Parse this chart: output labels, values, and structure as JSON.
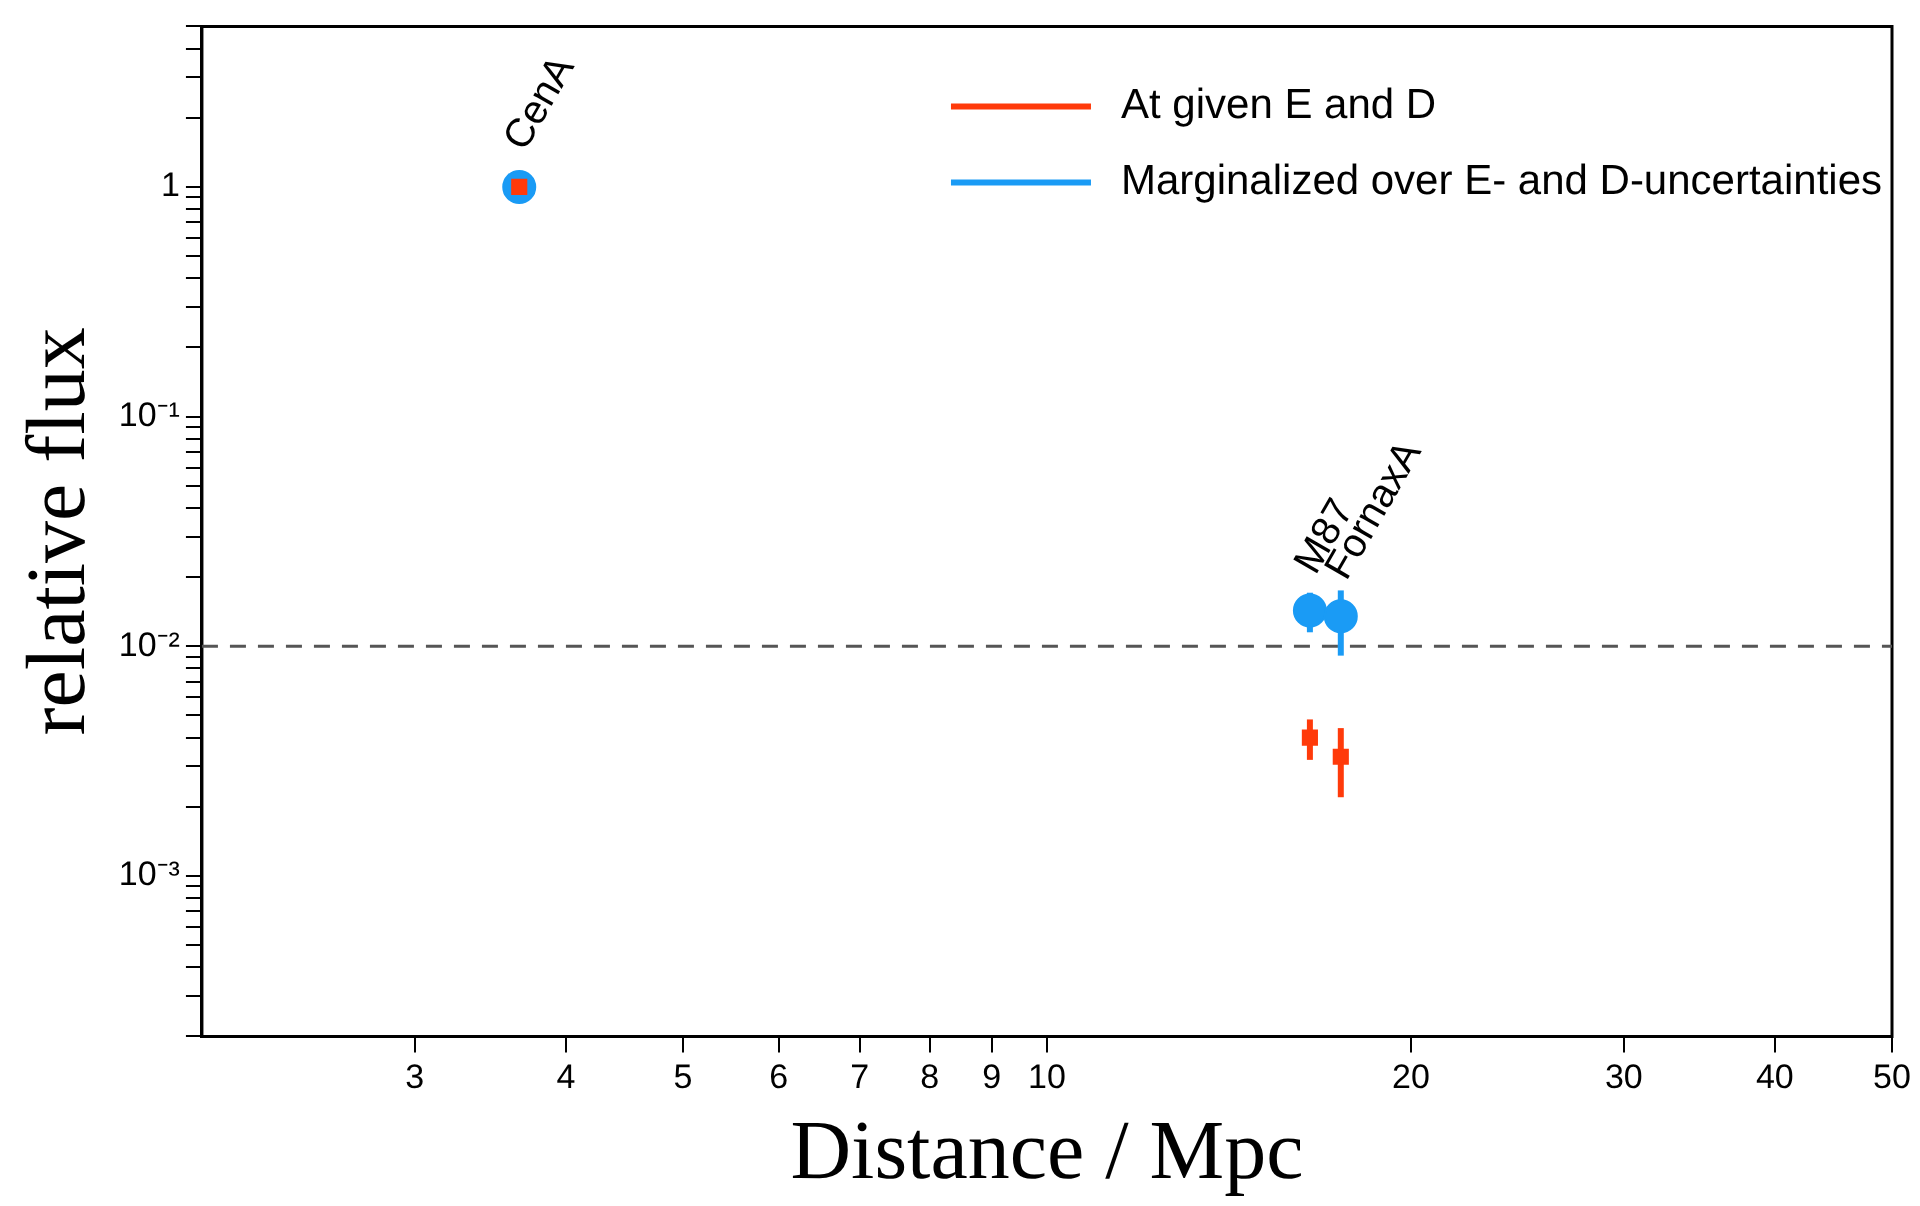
{
  "chart_data": {
    "type": "scatter",
    "xlabel": "Distance / Mpc",
    "ylabel": "relative flux",
    "log": "xy",
    "grid": false,
    "legend": "top right",
    "xlim": [
      2,
      50
    ],
    "xticks": [
      3,
      4,
      5,
      6,
      7,
      8,
      9,
      10,
      20,
      30,
      40,
      50
    ],
    "ylim": [
      0.0002,
      5
    ],
    "yticks": [
      {
        "value": 0.0002,
        "label": null
      },
      {
        "value": 0.0003,
        "label": null
      },
      {
        "value": 0.0004,
        "label": null
      },
      {
        "value": 0.0005,
        "label": null
      },
      {
        "value": 0.0006,
        "label": null
      },
      {
        "value": 0.0007,
        "label": null
      },
      {
        "value": 0.0008,
        "label": null
      },
      {
        "value": 0.0009,
        "label": null
      },
      {
        "value": 0.001,
        "label": "10⁻³"
      },
      {
        "value": 0.002,
        "label": null
      },
      {
        "value": 0.003,
        "label": null
      },
      {
        "value": 0.004,
        "label": null
      },
      {
        "value": 0.005,
        "label": null
      },
      {
        "value": 0.006,
        "label": null
      },
      {
        "value": 0.007,
        "label": null
      },
      {
        "value": 0.008,
        "label": null
      },
      {
        "value": 0.009,
        "label": null
      },
      {
        "value": 0.01,
        "label": "10⁻²"
      },
      {
        "value": 0.02,
        "label": null
      },
      {
        "value": 0.03,
        "label": null
      },
      {
        "value": 0.04,
        "label": null
      },
      {
        "value": 0.05,
        "label": null
      },
      {
        "value": 0.06,
        "label": null
      },
      {
        "value": 0.07,
        "label": null
      },
      {
        "value": 0.08,
        "label": null
      },
      {
        "value": 0.09,
        "label": null
      },
      {
        "value": 0.1,
        "label": "10⁻¹"
      },
      {
        "value": 0.2,
        "label": null
      },
      {
        "value": 0.3,
        "label": null
      },
      {
        "value": 0.4,
        "label": null
      },
      {
        "value": 0.5,
        "label": null
      },
      {
        "value": 0.6,
        "label": null
      },
      {
        "value": 0.7,
        "label": null
      },
      {
        "value": 0.8,
        "label": null
      },
      {
        "value": 0.9,
        "label": null
      },
      {
        "value": 1,
        "label": "1"
      },
      {
        "value": 2,
        "label": null
      },
      {
        "value": 3,
        "label": null
      },
      {
        "value": 4,
        "label": null
      },
      {
        "value": 5,
        "label": null
      }
    ],
    "series": [
      {
        "name": "At given E and D",
        "color": "#ff3a0a",
        "marker": "square",
        "x": [
          3.66,
          16.5,
          17.5
        ],
        "values": [
          1,
          0.004,
          0.0033
        ],
        "errors": [
          null,
          [
            0.0032,
            0.0048
          ],
          [
            0.0022,
            0.0044
          ]
        ]
      },
      {
        "name": "Marginalized over E- and D-uncertainties",
        "color": "#1a9bf5",
        "marker": "circle",
        "x": [
          3.66,
          16.5,
          17.5
        ],
        "values": [
          1,
          0.0143,
          0.0135
        ],
        "errors": [
          [
            0.87,
            1.15
          ],
          [
            0.0115,
            0.0171
          ],
          [
            0.0091,
            0.0175
          ]
        ]
      }
    ],
    "ref_lines": [
      {
        "axis": "y",
        "value": 0.01,
        "line_style": "dashed",
        "color": "#555555"
      }
    ],
    "annotations": [
      {
        "text": "CenA",
        "x": 3.66,
        "y": 1
      },
      {
        "text": "M87",
        "x": 16.5,
        "y": 0.0143
      },
      {
        "text": "FornaxA",
        "x": 17.5,
        "y": 0.0135
      }
    ]
  }
}
